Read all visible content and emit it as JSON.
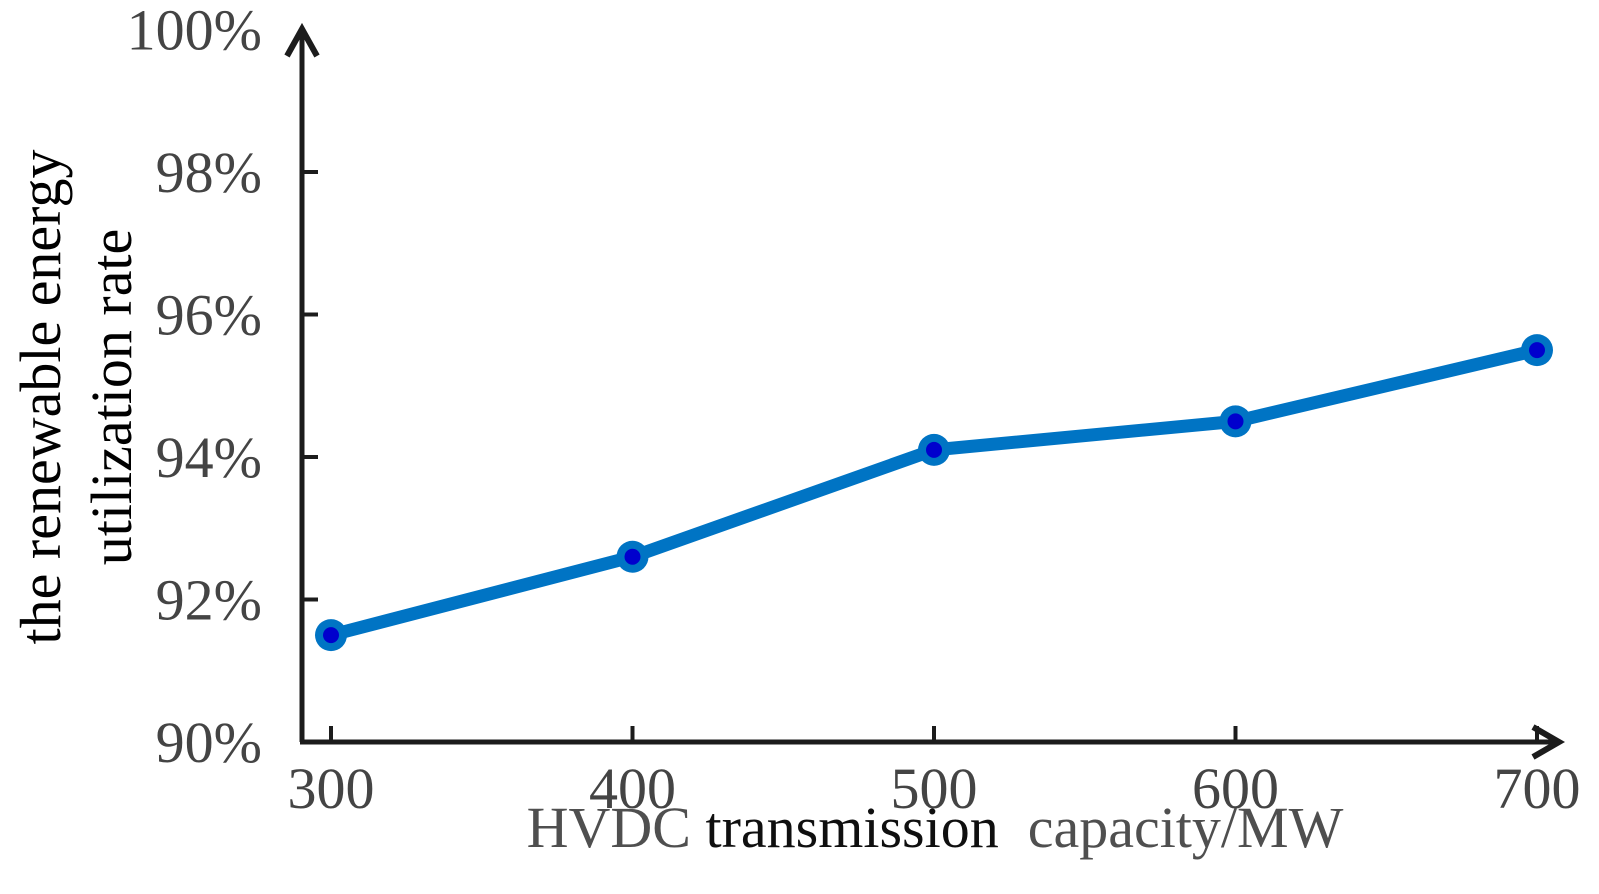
{
  "chart_data": {
    "type": "line",
    "x": [
      300,
      400,
      500,
      600,
      700
    ],
    "values": [
      91.5,
      92.6,
      94.1,
      94.5,
      95.5
    ],
    "series_name": "renewable energy utilization rate",
    "x_ticks": [
      {
        "v": 300,
        "label": "300"
      },
      {
        "v": 400,
        "label": "400"
      },
      {
        "v": 500,
        "label": "500"
      },
      {
        "v": 600,
        "label": "600"
      },
      {
        "v": 700,
        "label": "700"
      }
    ],
    "y_ticks": [
      {
        "v": 90,
        "label": "90%"
      },
      {
        "v": 92,
        "label": "92%"
      },
      {
        "v": 94,
        "label": "94%"
      },
      {
        "v": 96,
        "label": "96%"
      },
      {
        "v": 98,
        "label": "98%"
      },
      {
        "v": 100,
        "label": "100%"
      }
    ],
    "xlim": [
      300,
      700
    ],
    "ylim": [
      90,
      100
    ],
    "grid": false,
    "legend": "none",
    "xlabel": {
      "part1": "HVDC ",
      "part2": "transmission",
      "part3": "  capacity/MW",
      "part1_color": "#4f4f4f",
      "part2_color": "#0f0f0f",
      "part3_color": "#4f4f4f"
    },
    "ylabel": {
      "line1": "the renewable energy",
      "line2": "utilization rate"
    },
    "colors": {
      "line": "#0074c4",
      "marker_inner": "#0000cd",
      "axis": "#1c1c1c",
      "tick_label": "#444444"
    }
  }
}
